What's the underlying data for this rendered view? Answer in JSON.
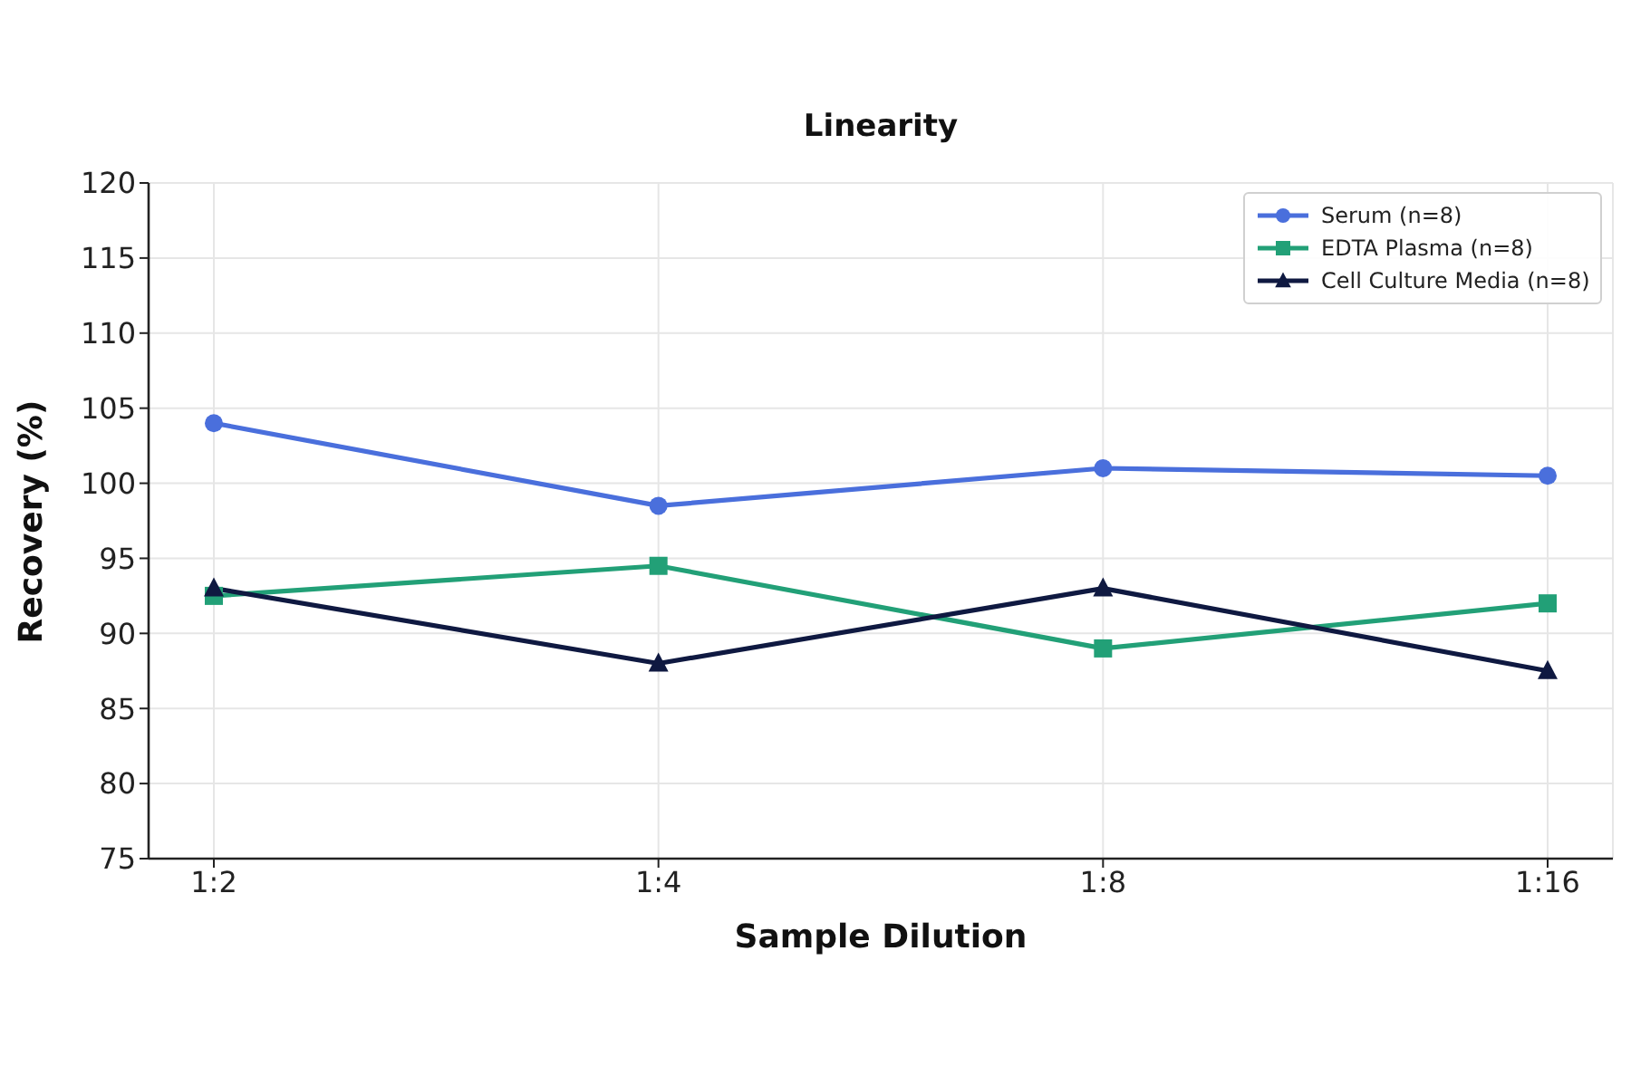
{
  "chart_data": {
    "type": "line",
    "title": "Linearity",
    "xlabel": "Sample Dilution",
    "ylabel": "Recovery (%)",
    "categories": [
      "1:2",
      "1:4",
      "1:8",
      "1:16"
    ],
    "series": [
      {
        "name": "Serum (n=8)",
        "color": "#4a6fdc",
        "marker": "circle",
        "values": [
          104,
          98.5,
          101,
          100.5
        ]
      },
      {
        "name": "EDTA Plasma (n=8)",
        "color": "#22a077",
        "marker": "square",
        "values": [
          92.5,
          94.5,
          89,
          92
        ]
      },
      {
        "name": "Cell Culture Media (n=8)",
        "color": "#0f1941",
        "marker": "triangle",
        "values": [
          93,
          88,
          93,
          87.5
        ]
      }
    ],
    "ylim": [
      75,
      120
    ],
    "yticks": [
      75,
      80,
      85,
      90,
      95,
      100,
      105,
      110,
      115,
      120
    ],
    "grid": true,
    "legend": "top right",
    "line_style": "solid"
  }
}
